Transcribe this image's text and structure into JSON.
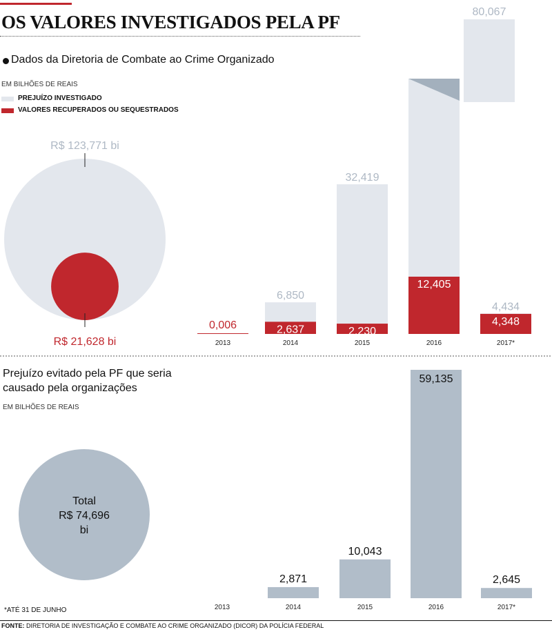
{
  "title": "OS VALORES INVESTIGADOS PELA PF",
  "section1": {
    "subtitle": "Dados da Diretoria de Combate ao Crime Organizado",
    "unit": "EM BILHÕES DE REAIS",
    "legend": [
      "PREJUÍZO INVESTIGADO",
      "VALORES RECUPERADOS OU SEQUESTRADOS"
    ],
    "total_investigated_label": "R$ 123,771 bi",
    "total_recovered_label": "R$ 21,628 bi"
  },
  "section2": {
    "subtitle": "Prejuízo evitado pela PF que seria causado pela organizações",
    "unit": "EM BILHÕES DE REAIS",
    "total_lines": [
      "Total",
      "R$ 74,696",
      "bi"
    ]
  },
  "footnote": "*ATÉ 31 DE JUNHO",
  "source": {
    "label": "FONTE:",
    "text": "DIRETORIA DE INVESTIGAÇÃO E COMBATE AO CRIME ORGANIZADO (DICOR) DA POLÍCIA FEDERAL"
  },
  "colors": {
    "investigated": "#e3e7ed",
    "recovered": "#c0272d",
    "avoided": "#b1bdc9",
    "investigated_text": "#aeb8c4",
    "break_wedge": "#a3b0bd"
  },
  "chart_data": [
    {
      "type": "bar",
      "categories": [
        "2013",
        "2014",
        "2015",
        "2016",
        "2017*"
      ],
      "series": [
        {
          "name": "PREJUÍZO INVESTIGADO",
          "values": [
            null,
            6.85,
            32.419,
            80.067,
            4.434
          ],
          "labels": [
            "",
            "6,850",
            "32,419",
            "80,067",
            "4,434"
          ]
        },
        {
          "name": "VALORES RECUPERADOS OU SEQUESTRADOS",
          "values": [
            0.006,
            2.637,
            2.23,
            12.405,
            4.348
          ],
          "labels": [
            "0,006",
            "2,637",
            "2,230",
            "12,405",
            "4,348"
          ]
        }
      ],
      "broken_axis_category": "2016",
      "totals": {
        "investigated": 123.771,
        "recovered": 21.628
      },
      "title": "",
      "xlabel": "",
      "ylabel": ""
    },
    {
      "type": "bar",
      "categories": [
        "2013",
        "2014",
        "2015",
        "2016",
        "2017*"
      ],
      "series": [
        {
          "name": "",
          "values": [
            null,
            2.871,
            10.043,
            59.135,
            2.645
          ],
          "labels": [
            "",
            "2,871",
            "10,043",
            "59,135",
            "2,645"
          ]
        }
      ],
      "totals": {
        "avoided": 74.696
      },
      "title": "",
      "xlabel": "",
      "ylabel": ""
    }
  ]
}
